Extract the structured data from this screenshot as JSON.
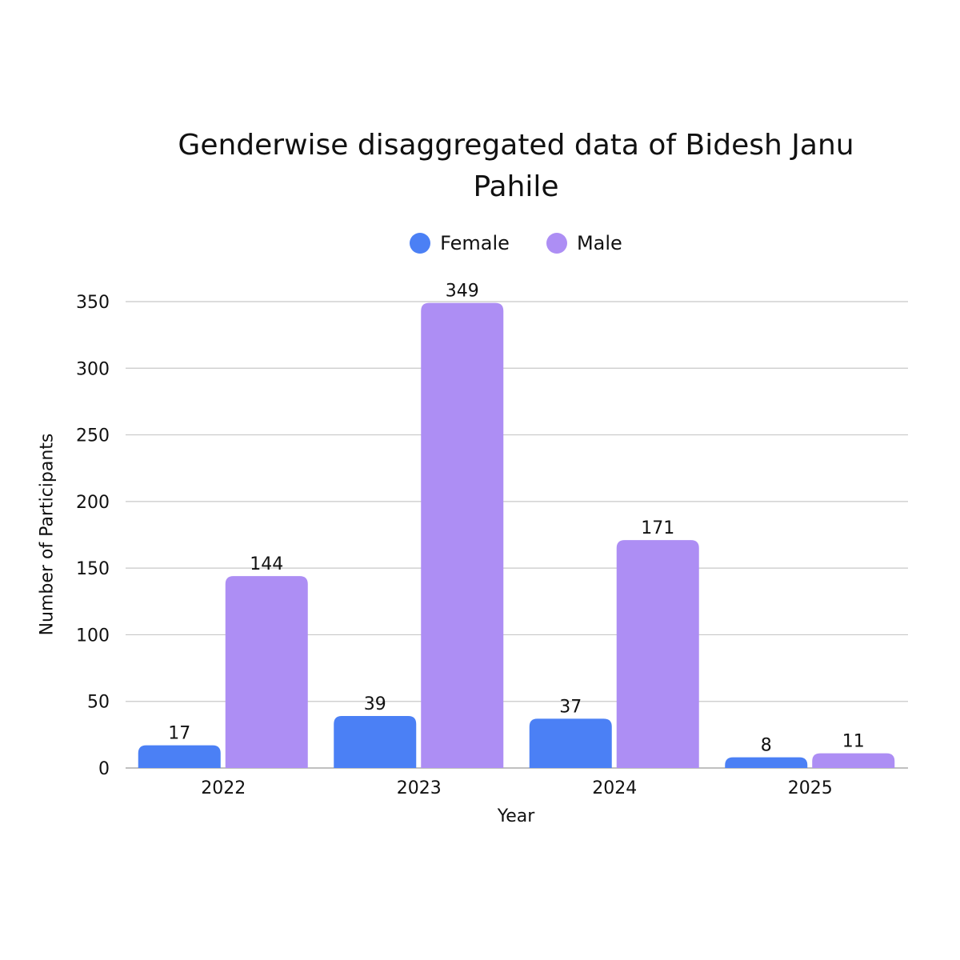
{
  "colors": {
    "female": "#4b80f5",
    "male": "#ad8ef4",
    "grid": "#c8c8c8",
    "text": "#111111"
  },
  "chart_data": {
    "type": "bar",
    "title": "Genderwise disaggregated data of Bidesh Janu Pahile",
    "xlabel": "Year",
    "ylabel": "Number of Participants",
    "categories": [
      "2022",
      "2023",
      "2024",
      "2025"
    ],
    "series": [
      {
        "name": "Female",
        "values": [
          17,
          39,
          37,
          8
        ]
      },
      {
        "name": "Male",
        "values": [
          144,
          349,
          171,
          11
        ]
      }
    ],
    "ylim": [
      0,
      350
    ],
    "yticks": [
      0,
      50,
      100,
      150,
      200,
      250,
      300,
      350
    ],
    "grid": true,
    "legend": "top-center",
    "data_labels": true
  }
}
